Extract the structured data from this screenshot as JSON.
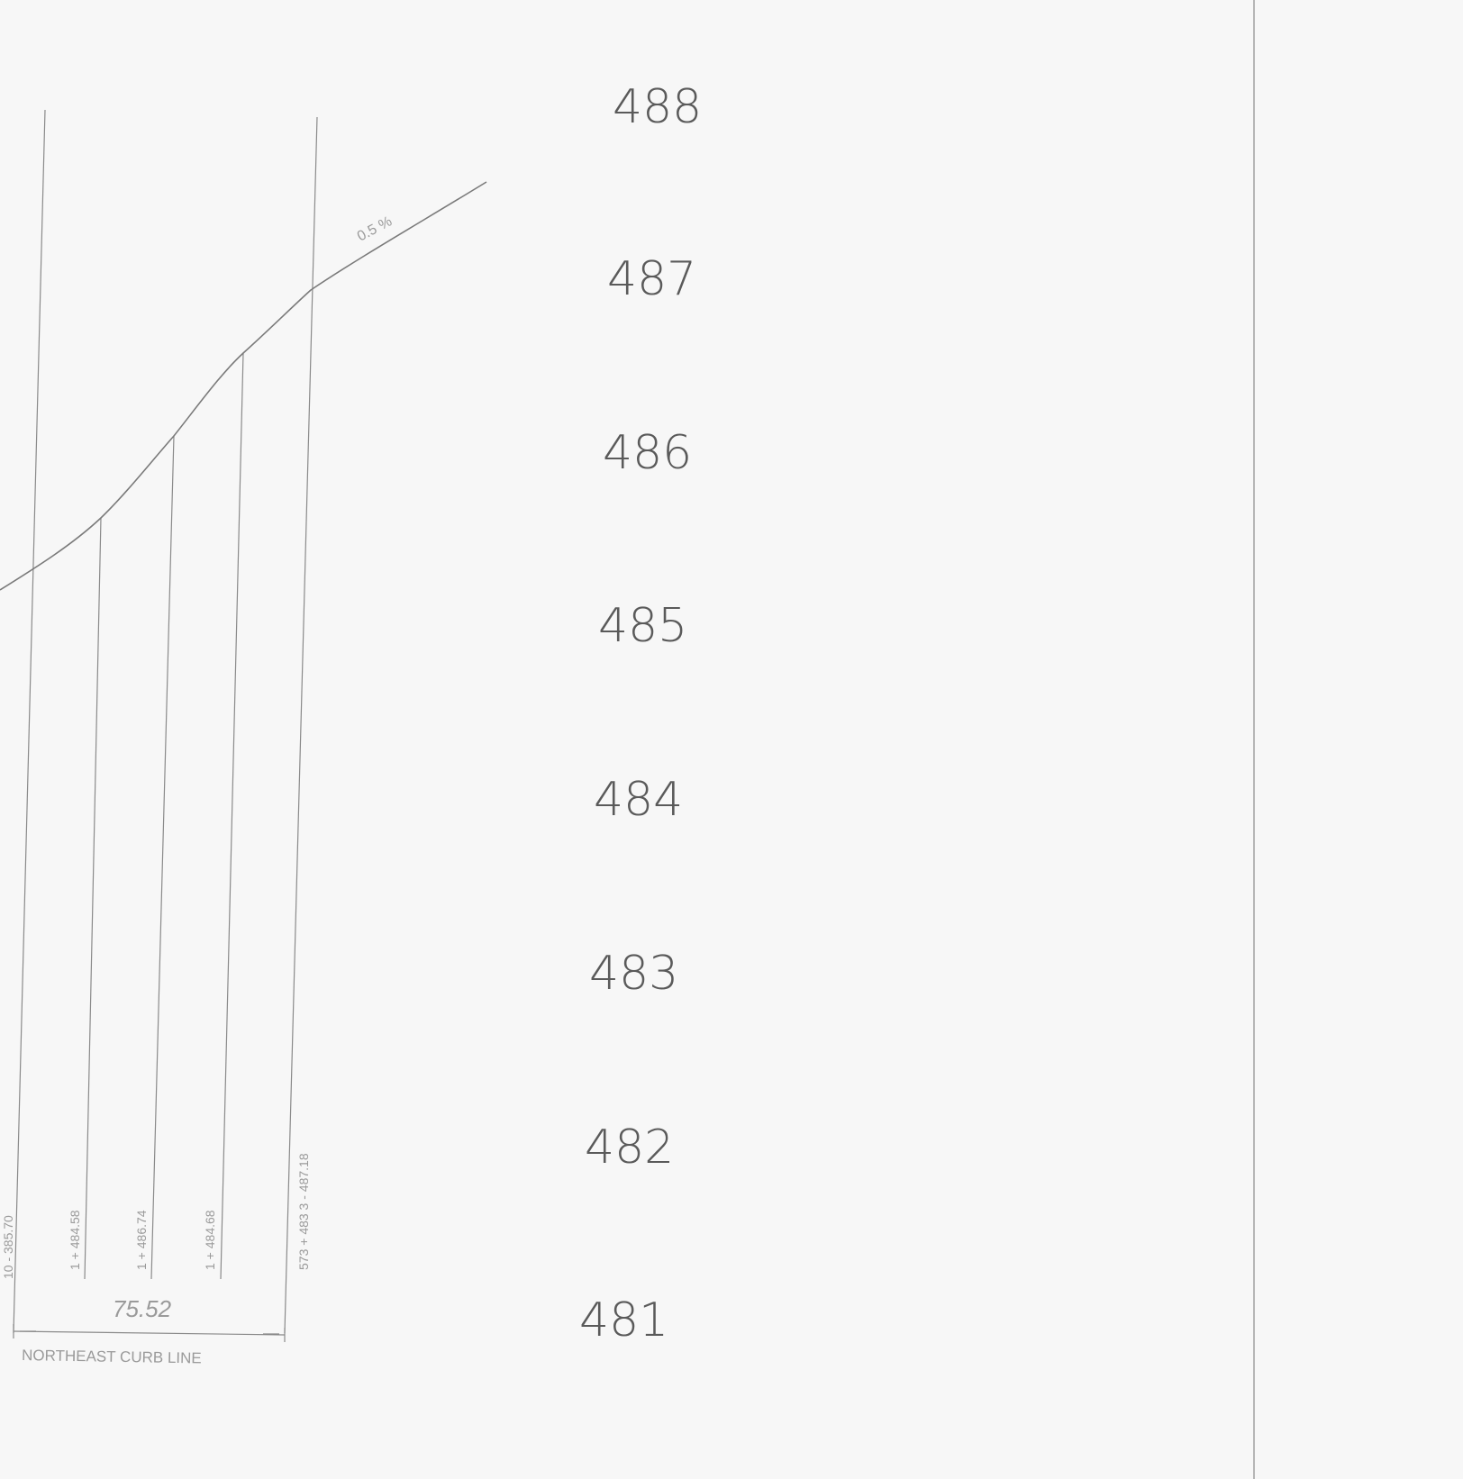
{
  "sheet": {
    "elevation_labels": [
      "488",
      "487",
      "486",
      "485",
      "484",
      "483",
      "482",
      "481"
    ],
    "baseline_label": "NORTHEAST CURB LINE",
    "dimension_label": "75.52",
    "profile_annotation": "0.5 %",
    "station_labels": [
      "10 - 385.70",
      "1 + 484.58",
      "1 + 486.74",
      "1 + 484.68",
      "573 + 483 3 - 487.18"
    ]
  }
}
